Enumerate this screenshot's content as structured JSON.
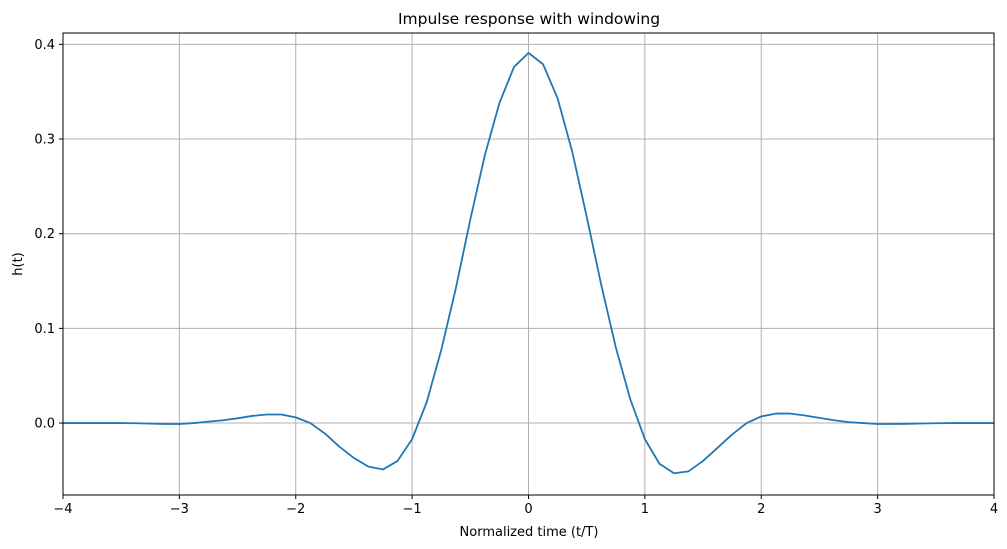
{
  "chart_data": {
    "type": "line",
    "title": "Impulse response with windowing",
    "xlabel": "Normalized time (t/T)",
    "ylabel": "h(t)",
    "xlim": [
      -4,
      4
    ],
    "ylim": [
      -0.076,
      0.412
    ],
    "xticks": [
      -4,
      -3,
      -2,
      -1,
      0,
      1,
      2,
      3,
      4
    ],
    "xtick_labels": [
      "−4",
      "−3",
      "−2",
      "−1",
      "0",
      "1",
      "2",
      "3",
      "4"
    ],
    "yticks": [
      0.0,
      0.1,
      0.2,
      0.3,
      0.4
    ],
    "ytick_labels": [
      "0.0",
      "0.1",
      "0.2",
      "0.3",
      "0.4"
    ],
    "grid": true,
    "series": [
      {
        "color": "#1f77b4",
        "x": [
          -4.0,
          -3.875,
          -3.75,
          -3.625,
          -3.5,
          -3.375,
          -3.25,
          -3.125,
          -3.0,
          -2.875,
          -2.75,
          -2.625,
          -2.5,
          -2.375,
          -2.25,
          -2.125,
          -2.0,
          -1.875,
          -1.75,
          -1.625,
          -1.5,
          -1.375,
          -1.25,
          -1.125,
          -1.0,
          -0.875,
          -0.75,
          -0.625,
          -0.5,
          -0.375,
          -0.25,
          -0.125,
          0.0,
          0.125,
          0.25,
          0.375,
          0.5,
          0.625,
          0.75,
          0.875,
          1.0,
          1.125,
          1.25,
          1.375,
          1.5,
          1.625,
          1.75,
          1.875,
          2.0,
          2.125,
          2.25,
          2.375,
          2.5,
          2.625,
          2.75,
          2.875,
          3.0,
          3.125,
          3.25,
          3.375,
          3.5,
          3.625,
          3.75,
          3.875,
          4.0
        ],
        "y": [
          0.0,
          0.0,
          0.0,
          0.0,
          0.0,
          -0.0002,
          -0.0006,
          -0.001,
          -0.001,
          0.0,
          0.0015,
          0.003,
          0.005,
          0.0075,
          0.009,
          0.009,
          0.006,
          0.0,
          -0.011,
          -0.025,
          -0.037,
          -0.046,
          -0.049,
          -0.04,
          -0.017,
          0.022,
          0.077,
          0.142,
          0.215,
          0.283,
          0.338,
          0.376,
          0.391,
          0.379,
          0.343,
          0.287,
          0.218,
          0.146,
          0.08,
          0.025,
          -0.017,
          -0.043,
          -0.053,
          -0.051,
          -0.04,
          -0.026,
          -0.012,
          0.0,
          0.007,
          0.01,
          0.01,
          0.008,
          0.0055,
          0.003,
          0.001,
          0.0,
          -0.001,
          -0.001,
          -0.0008,
          -0.0005,
          -0.0002,
          0.0,
          0.0,
          0.0,
          0.0
        ]
      }
    ]
  }
}
